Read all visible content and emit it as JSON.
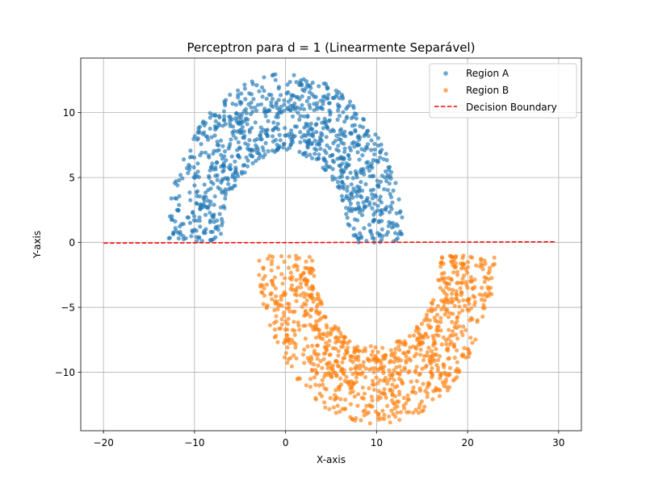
{
  "colors": {
    "region_a": "#1f77b4",
    "region_b": "#ff7f0e",
    "boundary": "#ff0000",
    "grid": "#b0b0b0"
  },
  "chart_data": {
    "type": "scatter",
    "title": "Perceptron para d = 1 (Linearmente Separável)",
    "xlabel": "X-axis",
    "ylabel": "Y-axis",
    "xlim": [
      -22.5,
      32.5
    ],
    "ylim": [
      -14.5,
      14.2
    ],
    "xticks": [
      -20,
      -10,
      0,
      10,
      20,
      30
    ],
    "xtick_labels": [
      "−20",
      "−10",
      "0",
      "10",
      "20",
      "30"
    ],
    "yticks": [
      -10,
      -5,
      0,
      5,
      10
    ],
    "ytick_labels": [
      "−10",
      "−5",
      "0",
      "5",
      "10"
    ],
    "grid": true,
    "legend_position": "top-right",
    "series": [
      {
        "name": "Region A",
        "kind": "scatter",
        "color": "#1f77b4",
        "shape": "upper half-moon",
        "center": [
          0,
          0
        ],
        "radius": 10,
        "width": 6,
        "count": 1000
      },
      {
        "name": "Region B",
        "kind": "scatter",
        "color": "#ff7f0e",
        "shape": "lower half-moon",
        "center": [
          10,
          -1
        ],
        "radius": 10,
        "width": 6,
        "count": 1000
      },
      {
        "name": "Decision Boundary",
        "kind": "line",
        "style": "dashed",
        "color": "#ff0000",
        "x": [
          -20,
          29.7
        ],
        "y": [
          -0.05,
          0.05
        ]
      }
    ]
  }
}
